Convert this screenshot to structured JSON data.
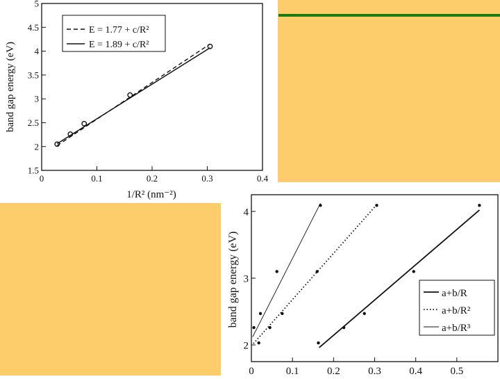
{
  "colors": {
    "background": "#fdcc6b",
    "accent_rule": "#1a7d12",
    "ink": "#111111"
  },
  "chart_data": [
    {
      "type": "line",
      "xlabel": "1/R² (nm⁻²)",
      "ylabel": "band gap energy (eV)",
      "xlim": [
        0,
        0.4
      ],
      "ylim": [
        1.5,
        5
      ],
      "x_ticks": [
        "0",
        "0.1",
        "0.2",
        "0.3",
        "0.4"
      ],
      "y_ticks": [
        "1.5",
        "2",
        "2.5",
        "3",
        "3.5",
        "4",
        "4.5",
        "5"
      ],
      "legend_position": "top-left",
      "legend": [
        "E = 1.77 + c/R²",
        "E = 1.89 + c/R²"
      ],
      "series": [
        {
          "name": "E = 1.77 + c/R²",
          "style": "dashed",
          "x": [
            0.028,
            0.305
          ],
          "y": [
            2.02,
            4.15
          ]
        },
        {
          "name": "E = 1.89 + c/R²",
          "style": "solid",
          "x": [
            0.028,
            0.305
          ],
          "y": [
            2.06,
            4.07
          ]
        }
      ],
      "points": {
        "x": [
          0.028,
          0.052,
          0.077,
          0.16,
          0.305
        ],
        "y": [
          2.05,
          2.26,
          2.48,
          3.08,
          4.1
        ]
      }
    },
    {
      "type": "line",
      "ylabel": "band gap energy (eV)",
      "xlim": [
        0,
        0.6
      ],
      "ylim": [
        1.75,
        4.25
      ],
      "x_ticks": [
        "0",
        "0.1",
        "0.2",
        "0.3",
        "0.4",
        "0.5"
      ],
      "y_ticks": [
        "2",
        "3",
        "4"
      ],
      "legend_position": "bottom-right",
      "legend": [
        "a+b/R",
        "a+b/R²",
        "a+b/R³"
      ],
      "series": [
        {
          "name": "a+b/R",
          "style": "solid",
          "x": [
            0.165,
            0.555
          ],
          "y": [
            1.96,
            4.02
          ],
          "points_x": [
            0.163,
            0.225,
            0.275,
            0.395,
            0.555
          ],
          "points_y": [
            2.03,
            2.26,
            2.47,
            3.1,
            4.09
          ]
        },
        {
          "name": "a+b/R²",
          "style": "dotted",
          "x": [
            0.005,
            0.305
          ],
          "y": [
            2.02,
            4.1
          ],
          "points_x": [
            0.018,
            0.045,
            0.075,
            0.16,
            0.305
          ],
          "points_y": [
            2.03,
            2.26,
            2.47,
            3.1,
            4.09
          ]
        },
        {
          "name": "a+b/R³",
          "style": "thin",
          "x": [
            0.003,
            0.168
          ],
          "y": [
            2.12,
            4.12
          ],
          "points_x": [
            0.006,
            0.022,
            0.062,
            0.168
          ],
          "points_y": [
            2.26,
            2.47,
            3.1,
            4.09
          ]
        }
      ]
    }
  ]
}
